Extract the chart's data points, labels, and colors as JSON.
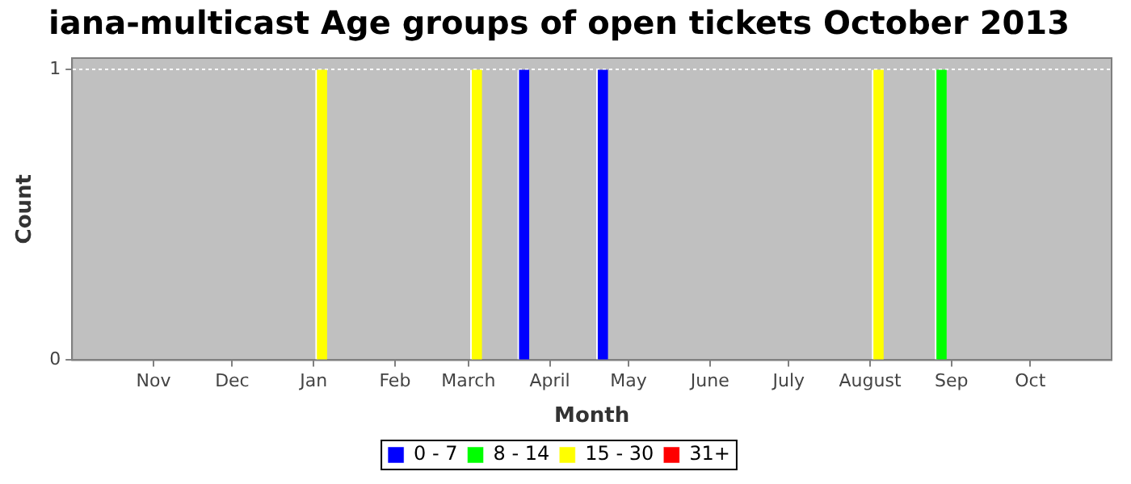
{
  "chart_data": {
    "type": "bar",
    "title": "iana-multicast Age groups of open tickets October 2013",
    "xlabel": "Month",
    "ylabel": "Count",
    "series": [
      {
        "name": "0 - 7",
        "color": "#0000ff",
        "x": [
          "2013-03-22",
          "2013-04-21"
        ],
        "values": [
          1,
          1
        ]
      },
      {
        "name": "8 - 14",
        "color": "#00ff00",
        "x": [
          "2013-08-28"
        ],
        "values": [
          1
        ]
      },
      {
        "name": "15 - 30",
        "color": "#ffff00",
        "x": [
          "2013-01-04",
          "2013-03-04",
          "2013-08-04"
        ],
        "values": [
          1,
          1,
          1
        ]
      },
      {
        "name": "31+",
        "color": "#ff0000"
      }
    ],
    "xlim": [
      "2012-10-01",
      "2013-11-01"
    ],
    "xticks": [
      {
        "value": "2012-11-01",
        "label": "Nov"
      },
      {
        "value": "2012-12-01",
        "label": "Dec"
      },
      {
        "value": "2013-01-01",
        "label": "Jan"
      },
      {
        "value": "2013-02-01",
        "label": "Feb"
      },
      {
        "value": "2013-03-01",
        "label": "March"
      },
      {
        "value": "2013-04-01",
        "label": "April"
      },
      {
        "value": "2013-05-01",
        "label": "May"
      },
      {
        "value": "2013-06-01",
        "label": "June"
      },
      {
        "value": "2013-07-01",
        "label": "July"
      },
      {
        "value": "2013-08-01",
        "label": "August"
      },
      {
        "value": "2013-09-01",
        "label": "Sep"
      },
      {
        "value": "2013-10-01",
        "label": "Oct"
      }
    ],
    "ylim": [
      0,
      1.04
    ],
    "yticks": [
      0,
      1
    ],
    "grid": "y",
    "legend": "bottom"
  }
}
